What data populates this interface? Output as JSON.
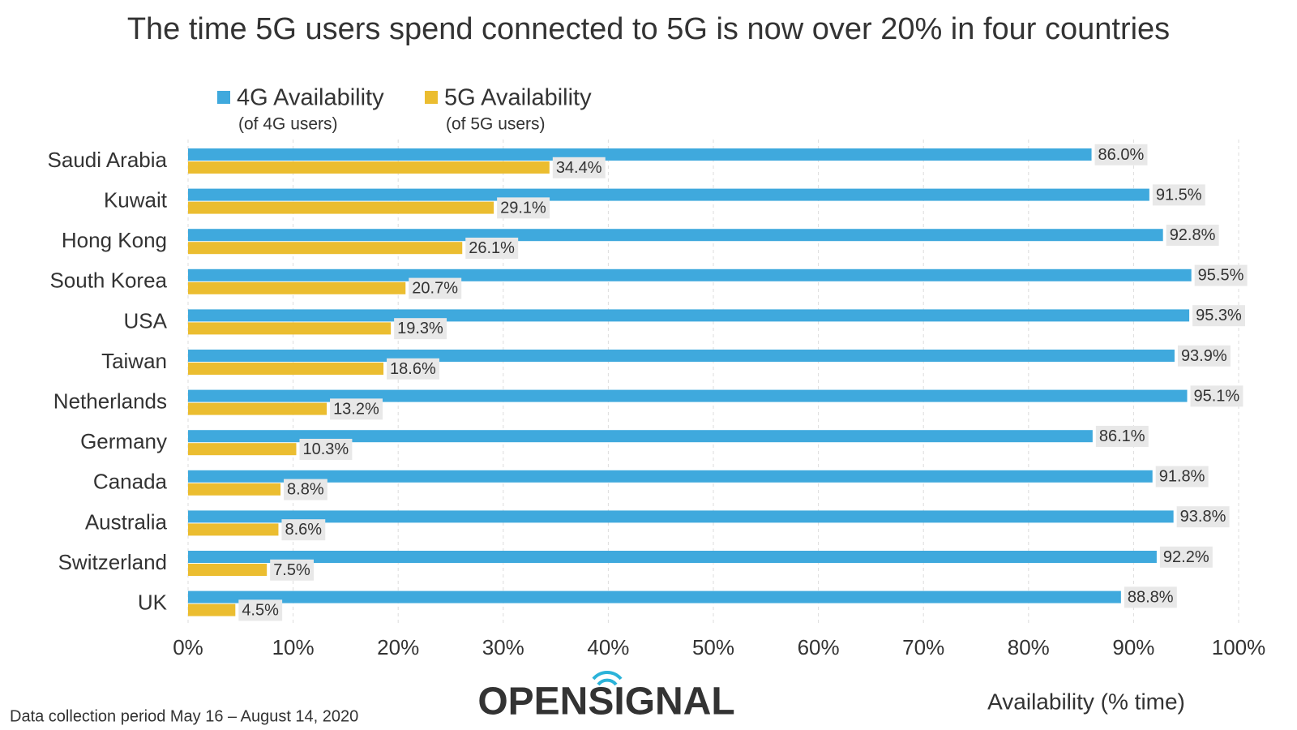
{
  "chart_data": {
    "type": "bar",
    "orientation": "horizontal",
    "title": "The time 5G users spend connected to 5G is now over 20% in four countries",
    "categories": [
      "Saudi Arabia",
      "Kuwait",
      "Hong Kong",
      "South Korea",
      "USA",
      "Taiwan",
      "Netherlands",
      "Germany",
      "Canada",
      "Australia",
      "Switzerland",
      "UK"
    ],
    "series": [
      {
        "name": "4G Availability",
        "note": "(of 4G users)",
        "color": "#3fa9dd",
        "values": [
          86.0,
          91.5,
          92.8,
          95.5,
          95.3,
          93.9,
          95.1,
          86.1,
          91.8,
          93.8,
          92.2,
          88.8
        ],
        "value_labels": [
          "86.0%",
          "91.5%",
          "92.8%",
          "95.5%",
          "95.3%",
          "93.9%",
          "95.1%",
          "86.1%",
          "91.8%",
          "93.8%",
          "92.2%",
          "88.8%"
        ]
      },
      {
        "name": "5G Availability",
        "note": "(of 5G users)",
        "color": "#ebbd30",
        "values": [
          34.4,
          29.1,
          26.1,
          20.7,
          19.3,
          18.6,
          13.2,
          10.3,
          8.8,
          8.6,
          7.5,
          4.5
        ],
        "value_labels": [
          "34.4%",
          "29.1%",
          "26.1%",
          "20.7%",
          "19.3%",
          "18.6%",
          "13.2%",
          "10.3%",
          "8.8%",
          "8.6%",
          "7.5%",
          "4.5%"
        ]
      }
    ],
    "xlim": [
      0,
      100
    ],
    "xticks": [
      {
        "value": 0,
        "label": "0%"
      },
      {
        "value": 10,
        "label": "10%"
      },
      {
        "value": 20,
        "label": "20%"
      },
      {
        "value": 30,
        "label": "30%"
      },
      {
        "value": 40,
        "label": "40%"
      },
      {
        "value": 50,
        "label": "50%"
      },
      {
        "value": 60,
        "label": "60%"
      },
      {
        "value": 70,
        "label": "70%"
      },
      {
        "value": 80,
        "label": "80%"
      },
      {
        "value": 90,
        "label": "90%"
      },
      {
        "value": 100,
        "label": "100%"
      }
    ],
    "xlabel": "Availability (% time)",
    "grid": true,
    "footnote": "Data collection period May 16 – August 14, 2020",
    "logo": "OPENSIGNAL"
  }
}
